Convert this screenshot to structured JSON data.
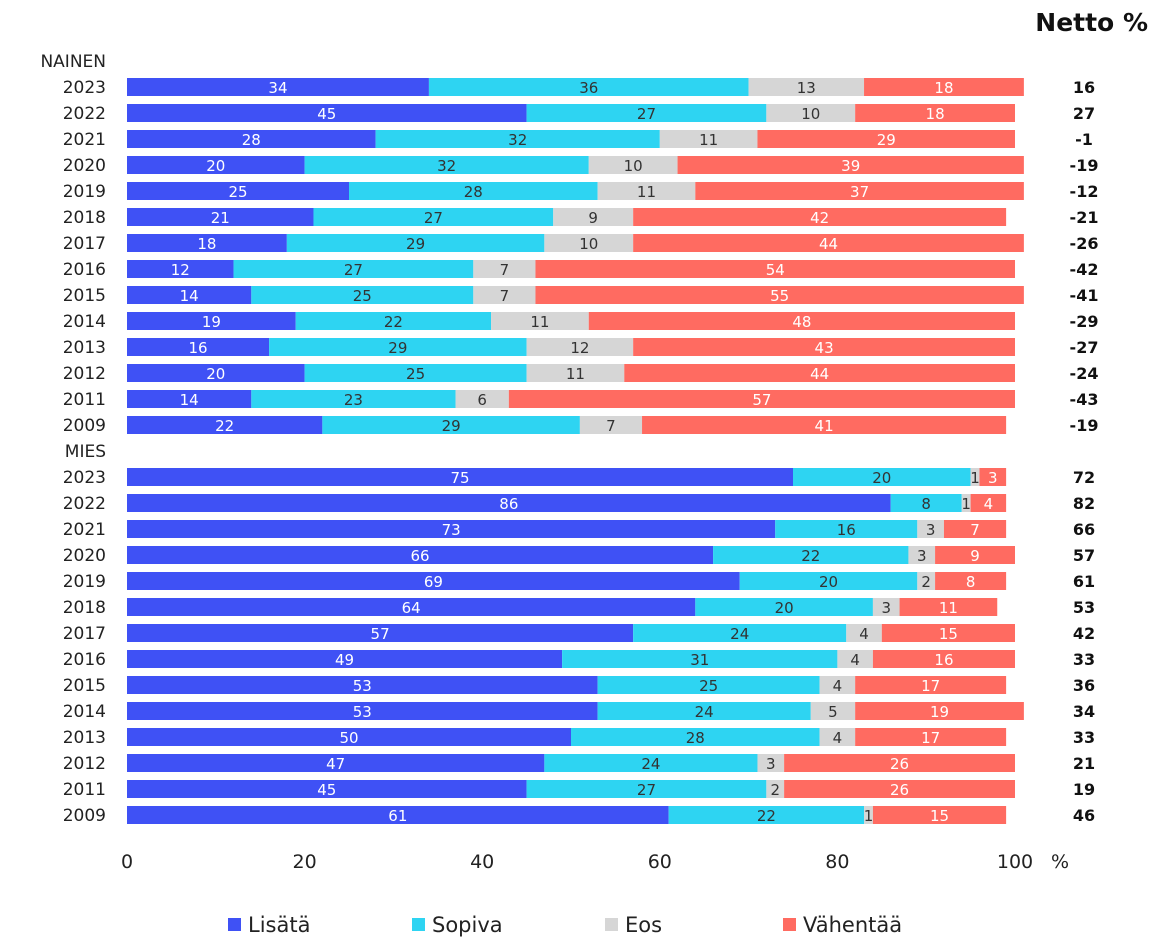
{
  "chart_data": {
    "type": "bar",
    "orientation": "horizontal",
    "stacked": true,
    "net_header": "Netto %",
    "x_unit_label": "%",
    "xlim": [
      0,
      100
    ],
    "x_ticks": [
      "0",
      "20",
      "40",
      "60",
      "80",
      "100"
    ],
    "series": [
      {
        "name": "Lisätä",
        "color": "#3f51f5"
      },
      {
        "name": "Sopiva",
        "color": "#2ed4f2"
      },
      {
        "name": "Eos",
        "color": "#d6d6d6"
      },
      {
        "name": "Vähentää",
        "color": "#ff6b61"
      }
    ],
    "label_colors": [
      "#ffffff",
      "#333333",
      "#333333",
      "#ffffff"
    ],
    "groups": [
      {
        "name": "NAINEN",
        "rows": [
          {
            "year": "2023",
            "values": [
              34,
              36,
              13,
              18
            ],
            "net": "16"
          },
          {
            "year": "2022",
            "values": [
              45,
              27,
              10,
              18
            ],
            "net": "27"
          },
          {
            "year": "2021",
            "values": [
              28,
              32,
              11,
              29
            ],
            "net": "-1"
          },
          {
            "year": "2020",
            "values": [
              20,
              32,
              10,
              39
            ],
            "net": "-19"
          },
          {
            "year": "2019",
            "values": [
              25,
              28,
              11,
              37
            ],
            "net": "-12"
          },
          {
            "year": "2018",
            "values": [
              21,
              27,
              9,
              42
            ],
            "net": "-21"
          },
          {
            "year": "2017",
            "values": [
              18,
              29,
              10,
              44
            ],
            "net": "-26"
          },
          {
            "year": "2016",
            "values": [
              12,
              27,
              7,
              54
            ],
            "net": "-42"
          },
          {
            "year": "2015",
            "values": [
              14,
              25,
              7,
              55
            ],
            "net": "-41"
          },
          {
            "year": "2014",
            "values": [
              19,
              22,
              11,
              48
            ],
            "net": "-29"
          },
          {
            "year": "2013",
            "values": [
              16,
              29,
              12,
              43
            ],
            "net": "-27"
          },
          {
            "year": "2012",
            "values": [
              20,
              25,
              11,
              44
            ],
            "net": "-24"
          },
          {
            "year": "2011",
            "values": [
              14,
              23,
              6,
              57
            ],
            "net": "-43"
          },
          {
            "year": "2009",
            "values": [
              22,
              29,
              7,
              41
            ],
            "net": "-19"
          }
        ]
      },
      {
        "name": "MIES",
        "rows": [
          {
            "year": "2023",
            "values": [
              75,
              20,
              1,
              3
            ],
            "net": "72"
          },
          {
            "year": "2022",
            "values": [
              86,
              8,
              1,
              4
            ],
            "net": "82"
          },
          {
            "year": "2021",
            "values": [
              73,
              16,
              3,
              7
            ],
            "net": "66"
          },
          {
            "year": "2020",
            "values": [
              66,
              22,
              3,
              9
            ],
            "net": "57"
          },
          {
            "year": "2019",
            "values": [
              69,
              20,
              2,
              8
            ],
            "net": "61"
          },
          {
            "year": "2018",
            "values": [
              64,
              20,
              3,
              11
            ],
            "net": "53"
          },
          {
            "year": "2017",
            "values": [
              57,
              24,
              4,
              15
            ],
            "net": "42"
          },
          {
            "year": "2016",
            "values": [
              49,
              31,
              4,
              16
            ],
            "net": "33"
          },
          {
            "year": "2015",
            "values": [
              53,
              25,
              4,
              17
            ],
            "net": "36"
          },
          {
            "year": "2014",
            "values": [
              53,
              24,
              5,
              19
            ],
            "net": "34"
          },
          {
            "year": "2013",
            "values": [
              50,
              28,
              4,
              17
            ],
            "net": "33"
          },
          {
            "year": "2012",
            "values": [
              47,
              24,
              3,
              26
            ],
            "net": "21"
          },
          {
            "year": "2011",
            "values": [
              45,
              27,
              2,
              26
            ],
            "net": "19"
          },
          {
            "year": "2009",
            "values": [
              61,
              22,
              1,
              15
            ],
            "net": "46"
          }
        ]
      }
    ],
    "legend_position": "bottom",
    "grid": false
  }
}
